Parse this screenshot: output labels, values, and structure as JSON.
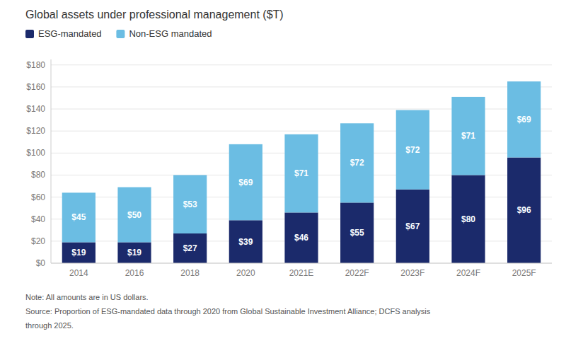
{
  "chart_data": {
    "type": "bar",
    "stacked": true,
    "title": "Global assets under professional management ($T)",
    "categories": [
      "2014",
      "2016",
      "2018",
      "2020",
      "2021E",
      "2022F",
      "2023F",
      "2024F",
      "2025F"
    ],
    "series": [
      {
        "name": "ESG-mandated",
        "color": "#1b2a6b",
        "values": [
          19,
          19,
          27,
          39,
          46,
          55,
          67,
          80,
          96
        ],
        "value_labels": [
          "$19",
          "$19",
          "$27",
          "$39",
          "$46",
          "$55",
          "$67",
          "$80",
          "$96"
        ]
      },
      {
        "name": "Non-ESG mandated",
        "color": "#6bbde3",
        "values": [
          45,
          50,
          53,
          69,
          71,
          72,
          72,
          71,
          69
        ],
        "value_labels": [
          "$45",
          "$50",
          "$53",
          "$69",
          "$71",
          "$72",
          "$72",
          "$71",
          "$69"
        ]
      }
    ],
    "ylim": [
      0,
      185
    ],
    "yticks": [
      {
        "value": 0,
        "label": "$0"
      },
      {
        "value": 20,
        "label": "$20"
      },
      {
        "value": 40,
        "label": "$40"
      },
      {
        "value": 60,
        "label": "$60"
      },
      {
        "value": 80,
        "label": "$80"
      },
      {
        "value": 100,
        "label": "$100"
      },
      {
        "value": 120,
        "label": "$120"
      },
      {
        "value": 140,
        "label": "$140"
      },
      {
        "value": 160,
        "label": "$160"
      },
      {
        "value": 180,
        "label": "$180"
      }
    ],
    "grid": true,
    "legend": "top-left",
    "data_labels": true,
    "annotations": [
      "Note: All amounts are in US dollars.",
      "Source: Proportion of ESG-mandated data through 2020 from Global Sustainable Investment Alliance; DCFS analysis",
      "through 2025."
    ]
  }
}
